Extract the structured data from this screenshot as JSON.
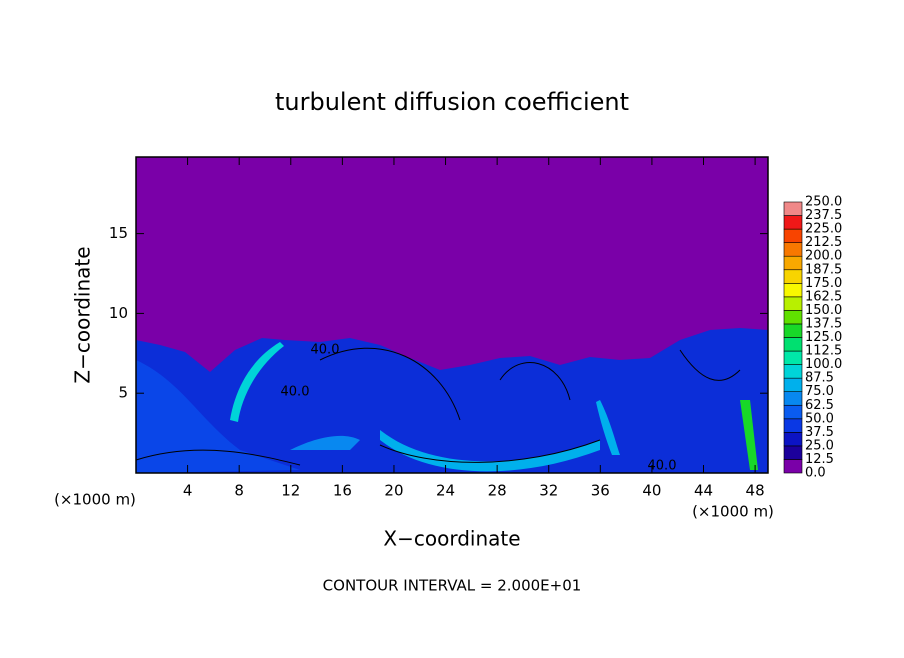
{
  "chart_data": {
    "type": "contour",
    "title": "turbulent diffusion coefficient",
    "x_label": "X−coordinate",
    "y_label": "Z−coordinate",
    "x_unit_left": "(×1000 m)",
    "x_unit_right": "(×1000 m)",
    "footer": "CONTOUR INTERVAL = 2.000E+01",
    "xlim": [
      0,
      49
    ],
    "ylim": [
      0,
      19.8
    ],
    "xticks": [
      4,
      8,
      12,
      16,
      20,
      24,
      28,
      32,
      36,
      40,
      44,
      48
    ],
    "yticks": [
      5,
      10,
      15
    ],
    "contour_labels": [
      "40.0",
      "40.0",
      "40.0"
    ],
    "colorbar": {
      "levels": [
        {
          "value": 0,
          "label": "0.0"
        },
        {
          "value": 12.5,
          "label": "12.5"
        },
        {
          "value": 25,
          "label": "25.0"
        },
        {
          "value": 37.5,
          "label": "37.5"
        },
        {
          "value": 50,
          "label": "50.0"
        },
        {
          "value": 62.5,
          "label": "62.5"
        },
        {
          "value": 75,
          "label": "75.0"
        },
        {
          "value": 87.5,
          "label": "87.5"
        },
        {
          "value": 100,
          "label": "100.0"
        },
        {
          "value": 112.5,
          "label": "112.5"
        },
        {
          "value": 125,
          "label": "125.0"
        },
        {
          "value": 137.5,
          "label": "137.5"
        },
        {
          "value": 150,
          "label": "150.0"
        },
        {
          "value": 162.5,
          "label": "162.5"
        },
        {
          "value": 175,
          "label": "175.0"
        },
        {
          "value": 187.5,
          "label": "187.5"
        },
        {
          "value": 200,
          "label": "200.0"
        },
        {
          "value": 212.5,
          "label": "212.5"
        },
        {
          "value": 225,
          "label": "225.0"
        },
        {
          "value": 237.5,
          "label": "237.5"
        },
        {
          "value": 250,
          "label": "250.0"
        }
      ],
      "colors": [
        "#7a00a8",
        "#1c009c",
        "#0c14c4",
        "#0a38e4",
        "#0a5cf0",
        "#0888f0",
        "#00b0ec",
        "#00d4d8",
        "#00e8a8",
        "#00e070",
        "#18d828",
        "#60e000",
        "#b8f000",
        "#f8f800",
        "#f8d400",
        "#f8a800",
        "#f87800",
        "#f84400",
        "#f01818",
        "#f08888"
      ]
    }
  }
}
